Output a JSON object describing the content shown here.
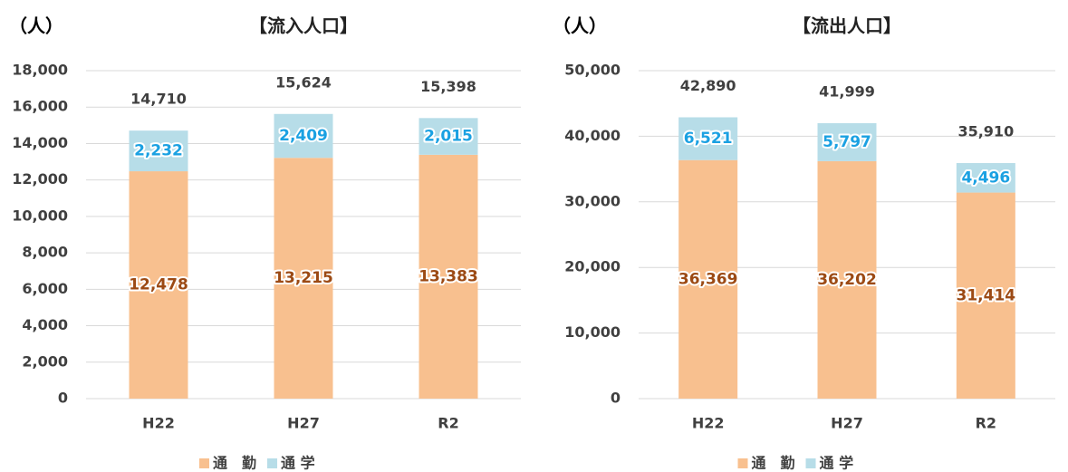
{
  "chart_data": [
    {
      "type": "bar",
      "stacked": true,
      "title": "【流入人口】",
      "y_label": "（人）",
      "categories": [
        "H22",
        "H27",
        "R2"
      ],
      "series": [
        {
          "name": "通　勤",
          "color": "#f8c08f",
          "label_color": "#9c4a14",
          "values": [
            12478,
            13215,
            13383
          ],
          "value_labels": [
            "12,478",
            "13,215",
            "13,383"
          ]
        },
        {
          "name": "通 学",
          "color": "#b7dde8",
          "label_color": "#1ba1e2",
          "values": [
            2232,
            2409,
            2015
          ],
          "value_labels": [
            "2,232",
            "2,409",
            "2,015"
          ]
        }
      ],
      "totals": [
        14710,
        15624,
        15398
      ],
      "total_labels": [
        "14,710",
        "15,624",
        "15,398"
      ],
      "ylim": [
        0,
        18000
      ],
      "yticks": [
        0,
        {
          "value": 2000,
          "label": "2,000"
        },
        {
          "value": 4000,
          "label": "4,000"
        },
        {
          "value": 6000,
          "label": "6,000"
        },
        {
          "value": 8000,
          "label": "8,000"
        },
        {
          "value": 10000,
          "label": "10,000"
        },
        {
          "value": 12000,
          "label": "12,000"
        },
        {
          "value": 14000,
          "label": "14,000"
        },
        {
          "value": 16000,
          "label": "16,000"
        },
        {
          "value": 18000,
          "label": "18,000"
        }
      ],
      "grid": true,
      "legend": "bottom"
    },
    {
      "type": "bar",
      "stacked": true,
      "title": "【流出人口】",
      "y_label": "（人）",
      "categories": [
        "H22",
        "H27",
        "R2"
      ],
      "series": [
        {
          "name": "通　勤",
          "color": "#f8c08f",
          "label_color": "#9c4a14",
          "values": [
            36369,
            36202,
            31414
          ],
          "value_labels": [
            "36,369",
            "36,202",
            "31,414"
          ]
        },
        {
          "name": "通 学",
          "color": "#b7dde8",
          "label_color": "#1ba1e2",
          "values": [
            6521,
            5797,
            4496
          ],
          "value_labels": [
            "6,521",
            "5,797",
            "4,496"
          ]
        }
      ],
      "totals": [
        42890,
        41999,
        35910
      ],
      "total_labels": [
        "42,890",
        "41,999",
        "35,910"
      ],
      "ylim": [
        0,
        50000
      ],
      "yticks": [
        0,
        {
          "value": 10000,
          "label": "10,000"
        },
        {
          "value": 20000,
          "label": "20,000"
        },
        {
          "value": 30000,
          "label": "30,000"
        },
        {
          "value": 40000,
          "label": "40,000"
        },
        {
          "value": 50000,
          "label": "50,000"
        }
      ],
      "grid": true,
      "legend": "bottom"
    }
  ]
}
